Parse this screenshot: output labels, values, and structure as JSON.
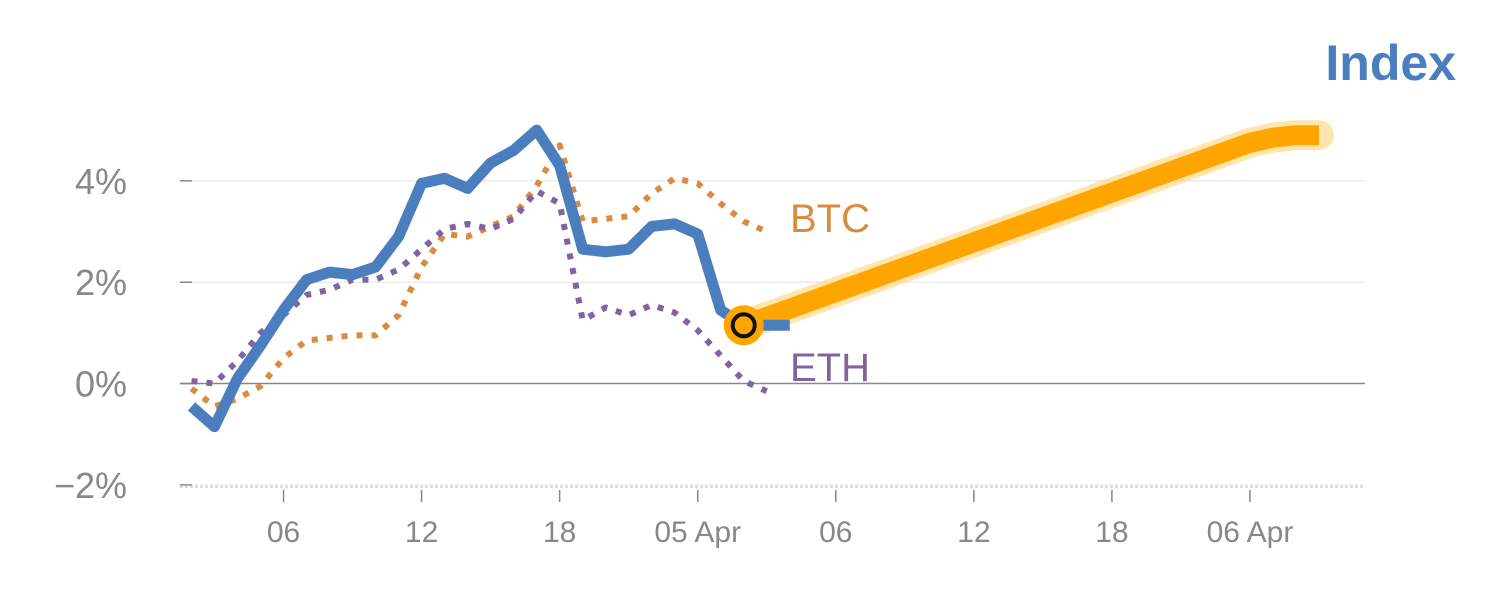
{
  "chart_data": {
    "type": "line",
    "title": "Index",
    "xlabel": "",
    "ylabel": "",
    "y_ticks": [
      "4%",
      "2%",
      "0%",
      "−2%"
    ],
    "y_tick_values": [
      4,
      2,
      0,
      -2
    ],
    "ylim": [
      -2.1,
      5.2
    ],
    "x_ticks": [
      "06",
      "12",
      "18",
      "05 Apr",
      "06",
      "12",
      "18",
      "06 Apr"
    ],
    "x_tick_values": [
      4,
      10,
      16,
      22,
      28,
      34,
      40,
      46
    ],
    "xlim": [
      -0.5,
      51
    ],
    "grid": true,
    "legend": "inline labels",
    "colors": {
      "index": "#4a7ebf",
      "btc": "#d98c3f",
      "eth": "#8064a2",
      "projection": "#ffa500",
      "axis": "#888888",
      "grid": "#e6e6e6"
    },
    "series": [
      {
        "key": "index",
        "label": "",
        "style": "solid",
        "x": [
          0,
          1,
          2,
          3,
          4,
          5,
          6,
          7,
          8,
          9,
          10,
          11,
          12,
          13,
          14,
          15,
          16,
          17,
          18,
          19,
          20,
          21,
          22,
          23,
          24,
          25,
          26
        ],
        "values": [
          -0.45,
          -0.85,
          0.1,
          0.75,
          1.45,
          2.05,
          2.2,
          2.15,
          2.3,
          2.9,
          3.95,
          4.05,
          3.85,
          4.35,
          4.6,
          5.0,
          4.3,
          2.65,
          2.6,
          2.65,
          3.1,
          3.15,
          2.95,
          1.45,
          1.15,
          1.15,
          1.15
        ]
      },
      {
        "key": "btc",
        "label": "BTC",
        "style": "dotted",
        "x": [
          0,
          1,
          2,
          3,
          4,
          5,
          6,
          7,
          8,
          9,
          10,
          11,
          12,
          13,
          14,
          15,
          16,
          17,
          18,
          19,
          20,
          21,
          22,
          23,
          24,
          25
        ],
        "values": [
          -0.1,
          -0.45,
          -0.3,
          -0.05,
          0.5,
          0.85,
          0.9,
          0.95,
          0.95,
          1.35,
          2.3,
          2.95,
          2.9,
          3.1,
          3.3,
          3.9,
          4.7,
          3.2,
          3.25,
          3.3,
          3.75,
          4.05,
          3.95,
          3.55,
          3.2,
          3.0
        ]
      },
      {
        "key": "eth",
        "label": "ETH",
        "style": "dotted",
        "x": [
          0,
          1,
          2,
          3,
          4,
          5,
          6,
          7,
          8,
          9,
          10,
          11,
          12,
          13,
          14,
          15,
          16,
          17,
          18,
          19,
          20,
          21,
          22,
          23,
          24,
          25
        ],
        "values": [
          0.05,
          0.0,
          0.45,
          1.0,
          1.35,
          1.75,
          1.85,
          2.05,
          2.05,
          2.25,
          2.65,
          3.05,
          3.15,
          3.05,
          3.25,
          3.8,
          3.55,
          1.25,
          1.5,
          1.35,
          1.55,
          1.4,
          1.05,
          0.55,
          0.05,
          -0.15
        ]
      },
      {
        "key": "projection",
        "label": "",
        "style": "thick",
        "x": [
          24,
          46,
          47,
          48,
          49
        ],
        "values": [
          1.15,
          4.75,
          4.85,
          4.9,
          4.9
        ]
      }
    ],
    "marker": {
      "x": 24,
      "y": 1.15
    }
  }
}
